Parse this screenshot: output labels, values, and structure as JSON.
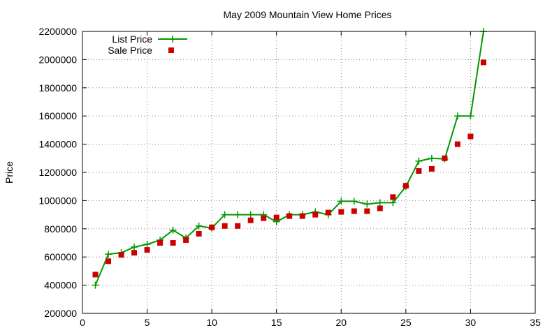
{
  "chart_data": {
    "type": "line",
    "title": "May 2009 Mountain View Home Prices",
    "xlabel": "",
    "ylabel": "Price",
    "xlim": [
      0,
      35
    ],
    "ylim": [
      200000,
      2200000
    ],
    "xticks": [
      0,
      5,
      10,
      15,
      20,
      25,
      30,
      35
    ],
    "yticks": [
      200000,
      400000,
      600000,
      800000,
      1000000,
      1200000,
      1400000,
      1600000,
      1800000,
      2000000,
      2200000
    ],
    "grid": true,
    "legend_position": "top-left",
    "series": [
      {
        "name": "List Price",
        "style": "line with plus markers",
        "color": "#009900",
        "x": [
          1,
          2,
          3,
          4,
          5,
          6,
          7,
          8,
          9,
          10,
          11,
          12,
          13,
          14,
          15,
          16,
          17,
          18,
          19,
          20,
          21,
          22,
          23,
          24,
          25,
          26,
          27,
          28,
          29,
          30,
          31
        ],
        "y": [
          400000,
          620000,
          630000,
          670000,
          690000,
          720000,
          790000,
          735000,
          820000,
          805000,
          900000,
          900000,
          900000,
          900000,
          850000,
          900000,
          900000,
          920000,
          900000,
          995000,
          995000,
          975000,
          985000,
          985000,
          1100000,
          1280000,
          1300000,
          1295000,
          1600000,
          1600000,
          2200000
        ]
      },
      {
        "name": "Sale Price",
        "style": "square markers",
        "color": "#cc0000",
        "x": [
          1,
          2,
          3,
          4,
          5,
          6,
          7,
          8,
          9,
          10,
          11,
          12,
          13,
          14,
          15,
          16,
          17,
          18,
          19,
          20,
          21,
          22,
          23,
          24,
          25,
          26,
          27,
          28,
          29,
          30,
          31
        ],
        "y": [
          475000,
          570000,
          615000,
          630000,
          650000,
          700000,
          700000,
          720000,
          765000,
          810000,
          820000,
          820000,
          860000,
          875000,
          880000,
          890000,
          890000,
          900000,
          915000,
          920000,
          925000,
          925000,
          945000,
          1025000,
          1105000,
          1210000,
          1225000,
          1300000,
          1400000,
          1455000,
          1980000
        ]
      }
    ]
  }
}
